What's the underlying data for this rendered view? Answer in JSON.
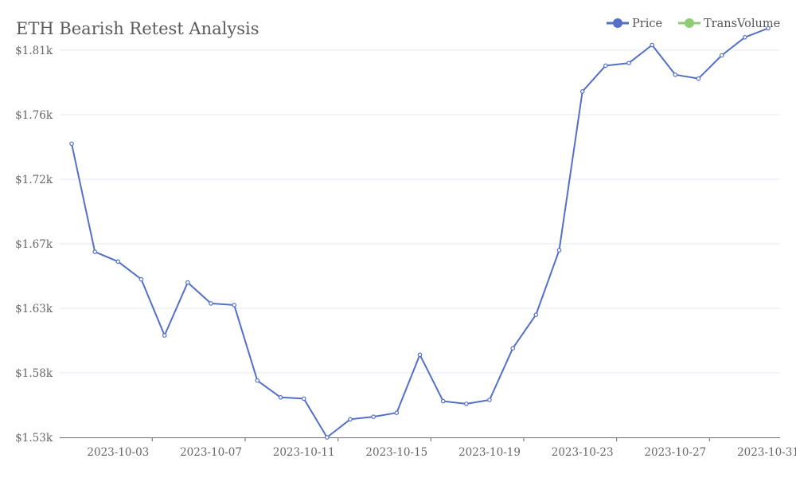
{
  "chart_data": {
    "type": "line",
    "title": "ETH Bearish Retest Analysis",
    "xlabel": "",
    "ylabel": "",
    "legend": {
      "position": "top-right",
      "items": [
        {
          "name": "Price",
          "color": "#5470c6"
        },
        {
          "name": "TransVolume",
          "color": "#91cc75"
        }
      ]
    },
    "grid": true,
    "ylim": [
      1530,
      1830
    ],
    "y_ticks": [
      1530,
      1580,
      1630,
      1670,
      1720,
      1760,
      1810
    ],
    "y_tick_labels": [
      "$1.53k",
      "$1.58k",
      "$1.63k",
      "$1.67k",
      "$1.72k",
      "$1.76k",
      "$1.81k"
    ],
    "x_tick_labels": [
      "2023-10-03",
      "2023-10-07",
      "2023-10-11",
      "2023-10-15",
      "2023-10-19",
      "2023-10-23",
      "2023-10-27",
      "2023-10-31"
    ],
    "x": [
      "2023-10-01",
      "2023-10-02",
      "2023-10-03",
      "2023-10-04",
      "2023-10-05",
      "2023-10-06",
      "2023-10-07",
      "2023-10-08",
      "2023-10-09",
      "2023-10-10",
      "2023-10-11",
      "2023-10-12",
      "2023-10-13",
      "2023-10-14",
      "2023-10-15",
      "2023-10-16",
      "2023-10-17",
      "2023-10-18",
      "2023-10-19",
      "2023-10-20",
      "2023-10-21",
      "2023-10-22",
      "2023-10-23",
      "2023-10-24",
      "2023-10-25",
      "2023-10-26",
      "2023-10-27",
      "2023-10-28",
      "2023-10-29",
      "2023-10-30",
      "2023-10-31"
    ],
    "series": [
      {
        "name": "Price",
        "values": [
          1742,
          1665,
          1659,
          1648,
          1609,
          1646,
          1633,
          1632,
          1574,
          1561,
          1560,
          1530,
          1544,
          1546,
          1549,
          1594,
          1558,
          1556,
          1559,
          1599,
          1625,
          1666,
          1778,
          1798,
          1800,
          1814,
          1791,
          1788,
          1806,
          1820,
          1827
        ]
      }
    ]
  }
}
